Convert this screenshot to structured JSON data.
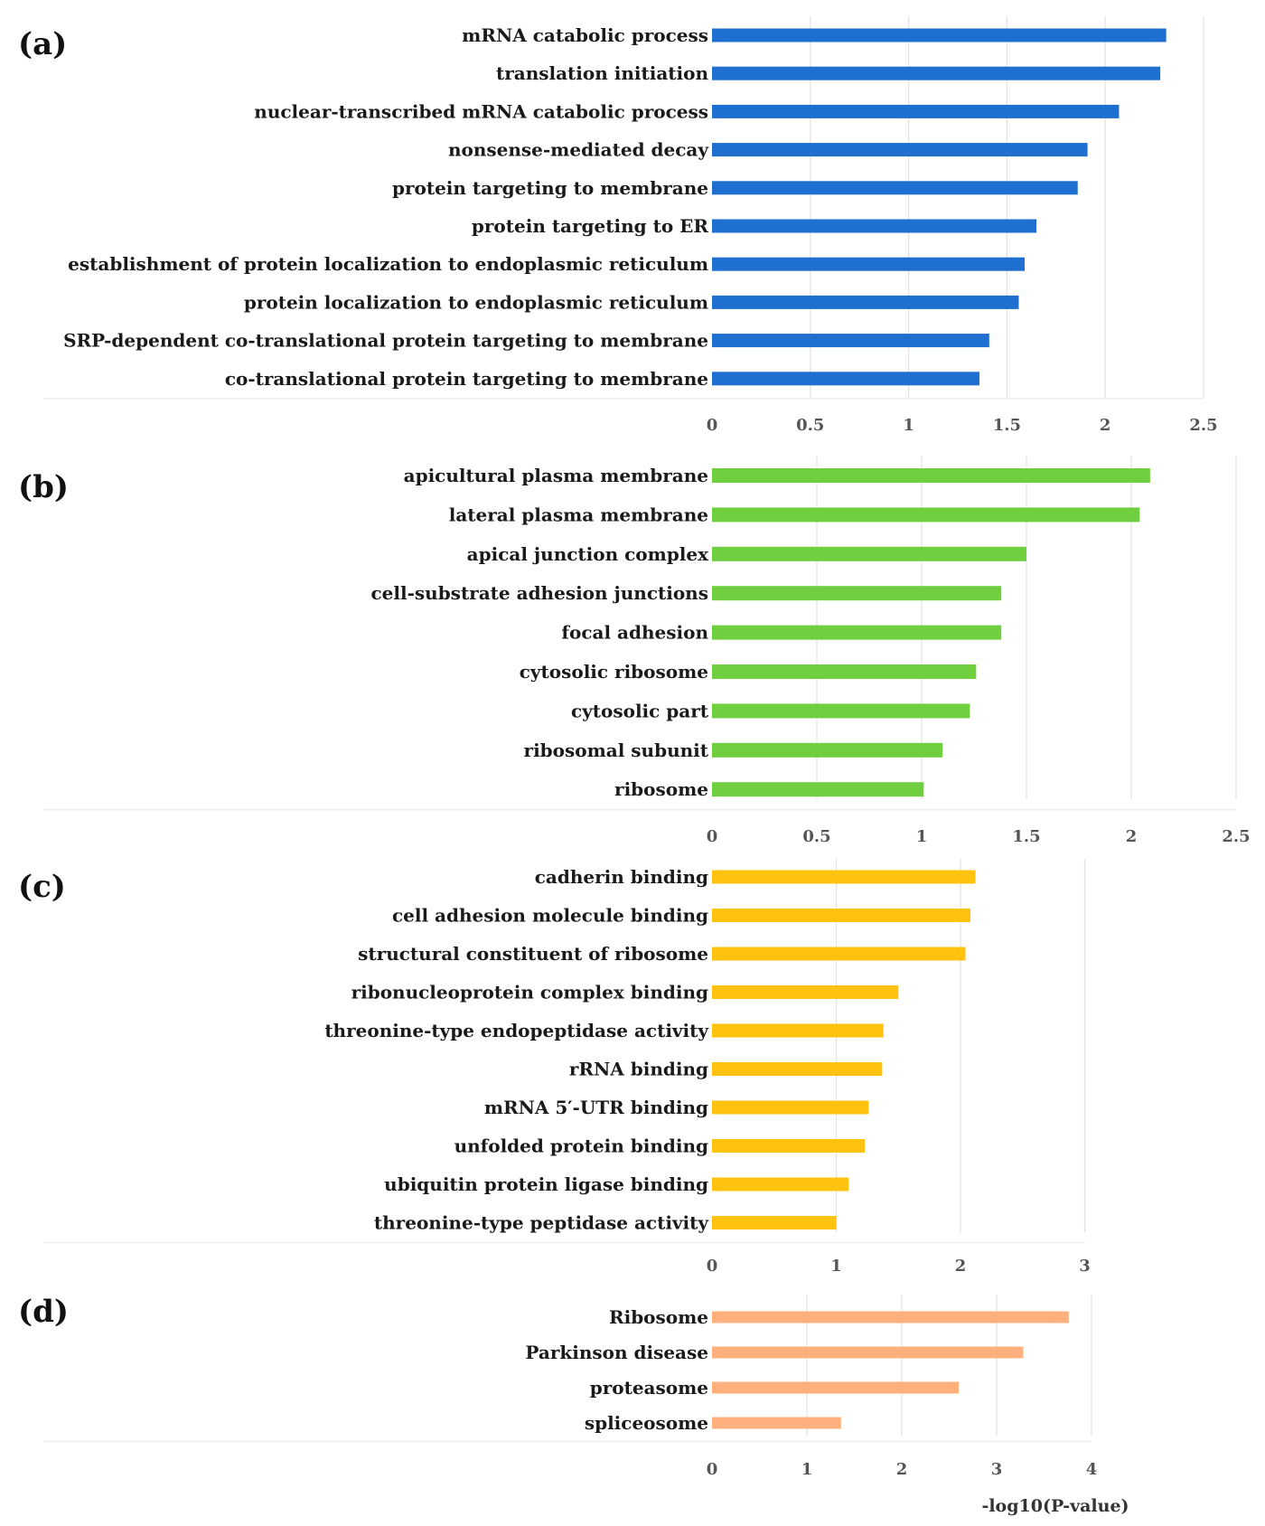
{
  "chart_data": [
    {
      "type": "bar",
      "orientation": "horizontal",
      "panel_label": "(a)",
      "color": "#1f6fd1",
      "categories": [
        "mRNA catabolic process",
        "translation initiation",
        "nuclear-transcribed mRNA catabolic process",
        "nonsense-mediated decay",
        "protein targeting to membrane",
        "protein targeting to ER",
        "establishment of protein localization to endoplasmic reticulum",
        "protein localization to endoplasmic reticulum",
        "SRP-dependent co-translational protein targeting to membrane",
        "co-translational protein targeting to membrane"
      ],
      "values": [
        2.31,
        2.28,
        2.07,
        1.91,
        1.86,
        1.65,
        1.59,
        1.56,
        1.41,
        1.36
      ],
      "xlim": [
        0,
        2.5
      ],
      "xticks": [
        "0",
        "0.5",
        "1",
        "1.5",
        "2",
        "2.5"
      ],
      "grid": true
    },
    {
      "type": "bar",
      "orientation": "horizontal",
      "panel_label": "(b)",
      "color": "#6fcf3f",
      "categories": [
        "apicultural plasma membrane",
        "lateral plasma membrane",
        "apical junction complex",
        "cell-substrate adhesion junctions",
        "focal adhesion",
        "cytosolic ribosome",
        "cytosolic part",
        "ribosomal subunit",
        "ribosome"
      ],
      "values": [
        2.09,
        2.04,
        1.5,
        1.38,
        1.38,
        1.26,
        1.23,
        1.1,
        1.01
      ],
      "xlim": [
        0,
        2.5
      ],
      "xticks": [
        "0",
        "0.5",
        "1",
        "1.5",
        "2",
        "2.5"
      ],
      "grid": true
    },
    {
      "type": "bar",
      "orientation": "horizontal",
      "panel_label": "(c)",
      "color": "#ffc20e",
      "categories": [
        "cadherin binding",
        "cell adhesion molecule binding",
        "structural constituent of ribosome",
        "ribonucleoprotein complex binding",
        "threonine-type endopeptidase activity",
        "rRNA binding",
        "mRNA 5′-UTR binding",
        "unfolded protein binding",
        "ubiquitin protein ligase binding",
        "threonine-type peptidase activity"
      ],
      "values": [
        2.12,
        2.08,
        2.04,
        1.5,
        1.38,
        1.37,
        1.26,
        1.23,
        1.1,
        1.0
      ],
      "xlim": [
        0,
        3
      ],
      "xticks": [
        "0",
        "1",
        "2",
        "3"
      ],
      "grid": true
    },
    {
      "type": "bar",
      "orientation": "horizontal",
      "panel_label": "(d)",
      "color": "#ffb07c",
      "categories": [
        "Ribosome",
        "Parkinson disease",
        "proteasome",
        "spliceosome"
      ],
      "values": [
        3.76,
        3.28,
        2.6,
        1.36
      ],
      "xlim": [
        0,
        4
      ],
      "xticks": [
        "0",
        "1",
        "2",
        "3",
        "4"
      ],
      "xlabel": "-log10(P-value)",
      "grid": true
    }
  ]
}
